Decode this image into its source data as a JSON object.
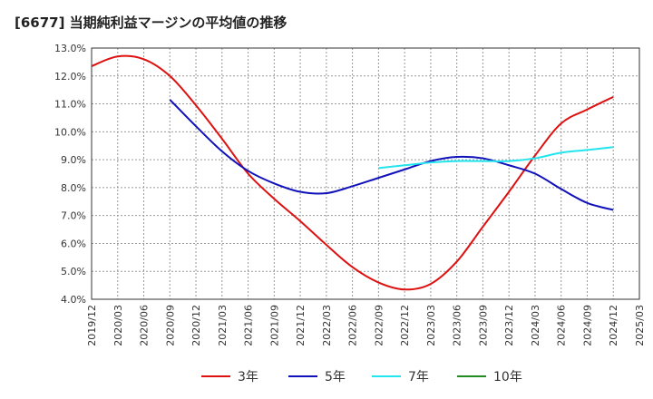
{
  "title": "[6677]  当期純利益マージンの平均値の推移",
  "chart_data": {
    "type": "line",
    "y_tick_labels": [
      "4.0%",
      "5.0%",
      "6.0%",
      "7.0%",
      "8.0%",
      "9.0%",
      "10.0%",
      "11.0%",
      "12.0%",
      "13.0%"
    ],
    "x_tick_labels": [
      "2019/12",
      "2020/03",
      "2020/06",
      "2020/09",
      "2020/12",
      "2021/03",
      "2021/06",
      "2021/09",
      "2021/12",
      "2022/03",
      "2022/06",
      "2022/09",
      "2022/12",
      "2023/03",
      "2023/06",
      "2023/09",
      "2023/12",
      "2024/03",
      "2024/06",
      "2024/09",
      "2024/12",
      "2025/03"
    ],
    "ylim": [
      4.0,
      13.0
    ],
    "grid": true,
    "legend_position": "bottom",
    "series": [
      {
        "name": "3年",
        "color": "#dd1111",
        "x": [
          "2019/12",
          "2020/03",
          "2020/06",
          "2020/09",
          "2020/12",
          "2021/03",
          "2021/06",
          "2021/09",
          "2021/12",
          "2022/03",
          "2022/06",
          "2022/09",
          "2022/12",
          "2023/03",
          "2023/06",
          "2023/09",
          "2023/12",
          "2024/03",
          "2024/06",
          "2024/09",
          "2024/12"
        ],
        "values": [
          12.35,
          12.7,
          12.6,
          12.0,
          10.95,
          9.75,
          8.5,
          7.6,
          6.8,
          5.95,
          5.15,
          4.6,
          4.35,
          4.55,
          5.35,
          6.6,
          7.85,
          9.15,
          10.3,
          10.8,
          11.25
        ]
      },
      {
        "name": "5年",
        "color": "#1111bb",
        "x": [
          "2020/09",
          "2020/12",
          "2021/03",
          "2021/06",
          "2021/09",
          "2021/12",
          "2022/03",
          "2022/06",
          "2022/09",
          "2022/12",
          "2023/03",
          "2023/06",
          "2023/09",
          "2023/12",
          "2024/03",
          "2024/06",
          "2024/09",
          "2024/12"
        ],
        "values": [
          11.15,
          10.2,
          9.3,
          8.6,
          8.15,
          7.85,
          7.8,
          8.05,
          8.35,
          8.65,
          8.95,
          9.1,
          9.05,
          8.8,
          8.5,
          7.95,
          7.45,
          7.2
        ]
      },
      {
        "name": "7年",
        "color": "#22e5ee",
        "x": [
          "2022/09",
          "2022/12",
          "2023/03",
          "2023/06",
          "2023/09",
          "2023/12",
          "2024/03",
          "2024/06",
          "2024/09",
          "2024/12"
        ],
        "values": [
          8.7,
          8.8,
          8.9,
          8.95,
          8.95,
          8.95,
          9.05,
          9.25,
          9.35,
          9.45
        ]
      },
      {
        "name": "10年",
        "color": "#228b22",
        "x": [],
        "values": []
      }
    ]
  }
}
